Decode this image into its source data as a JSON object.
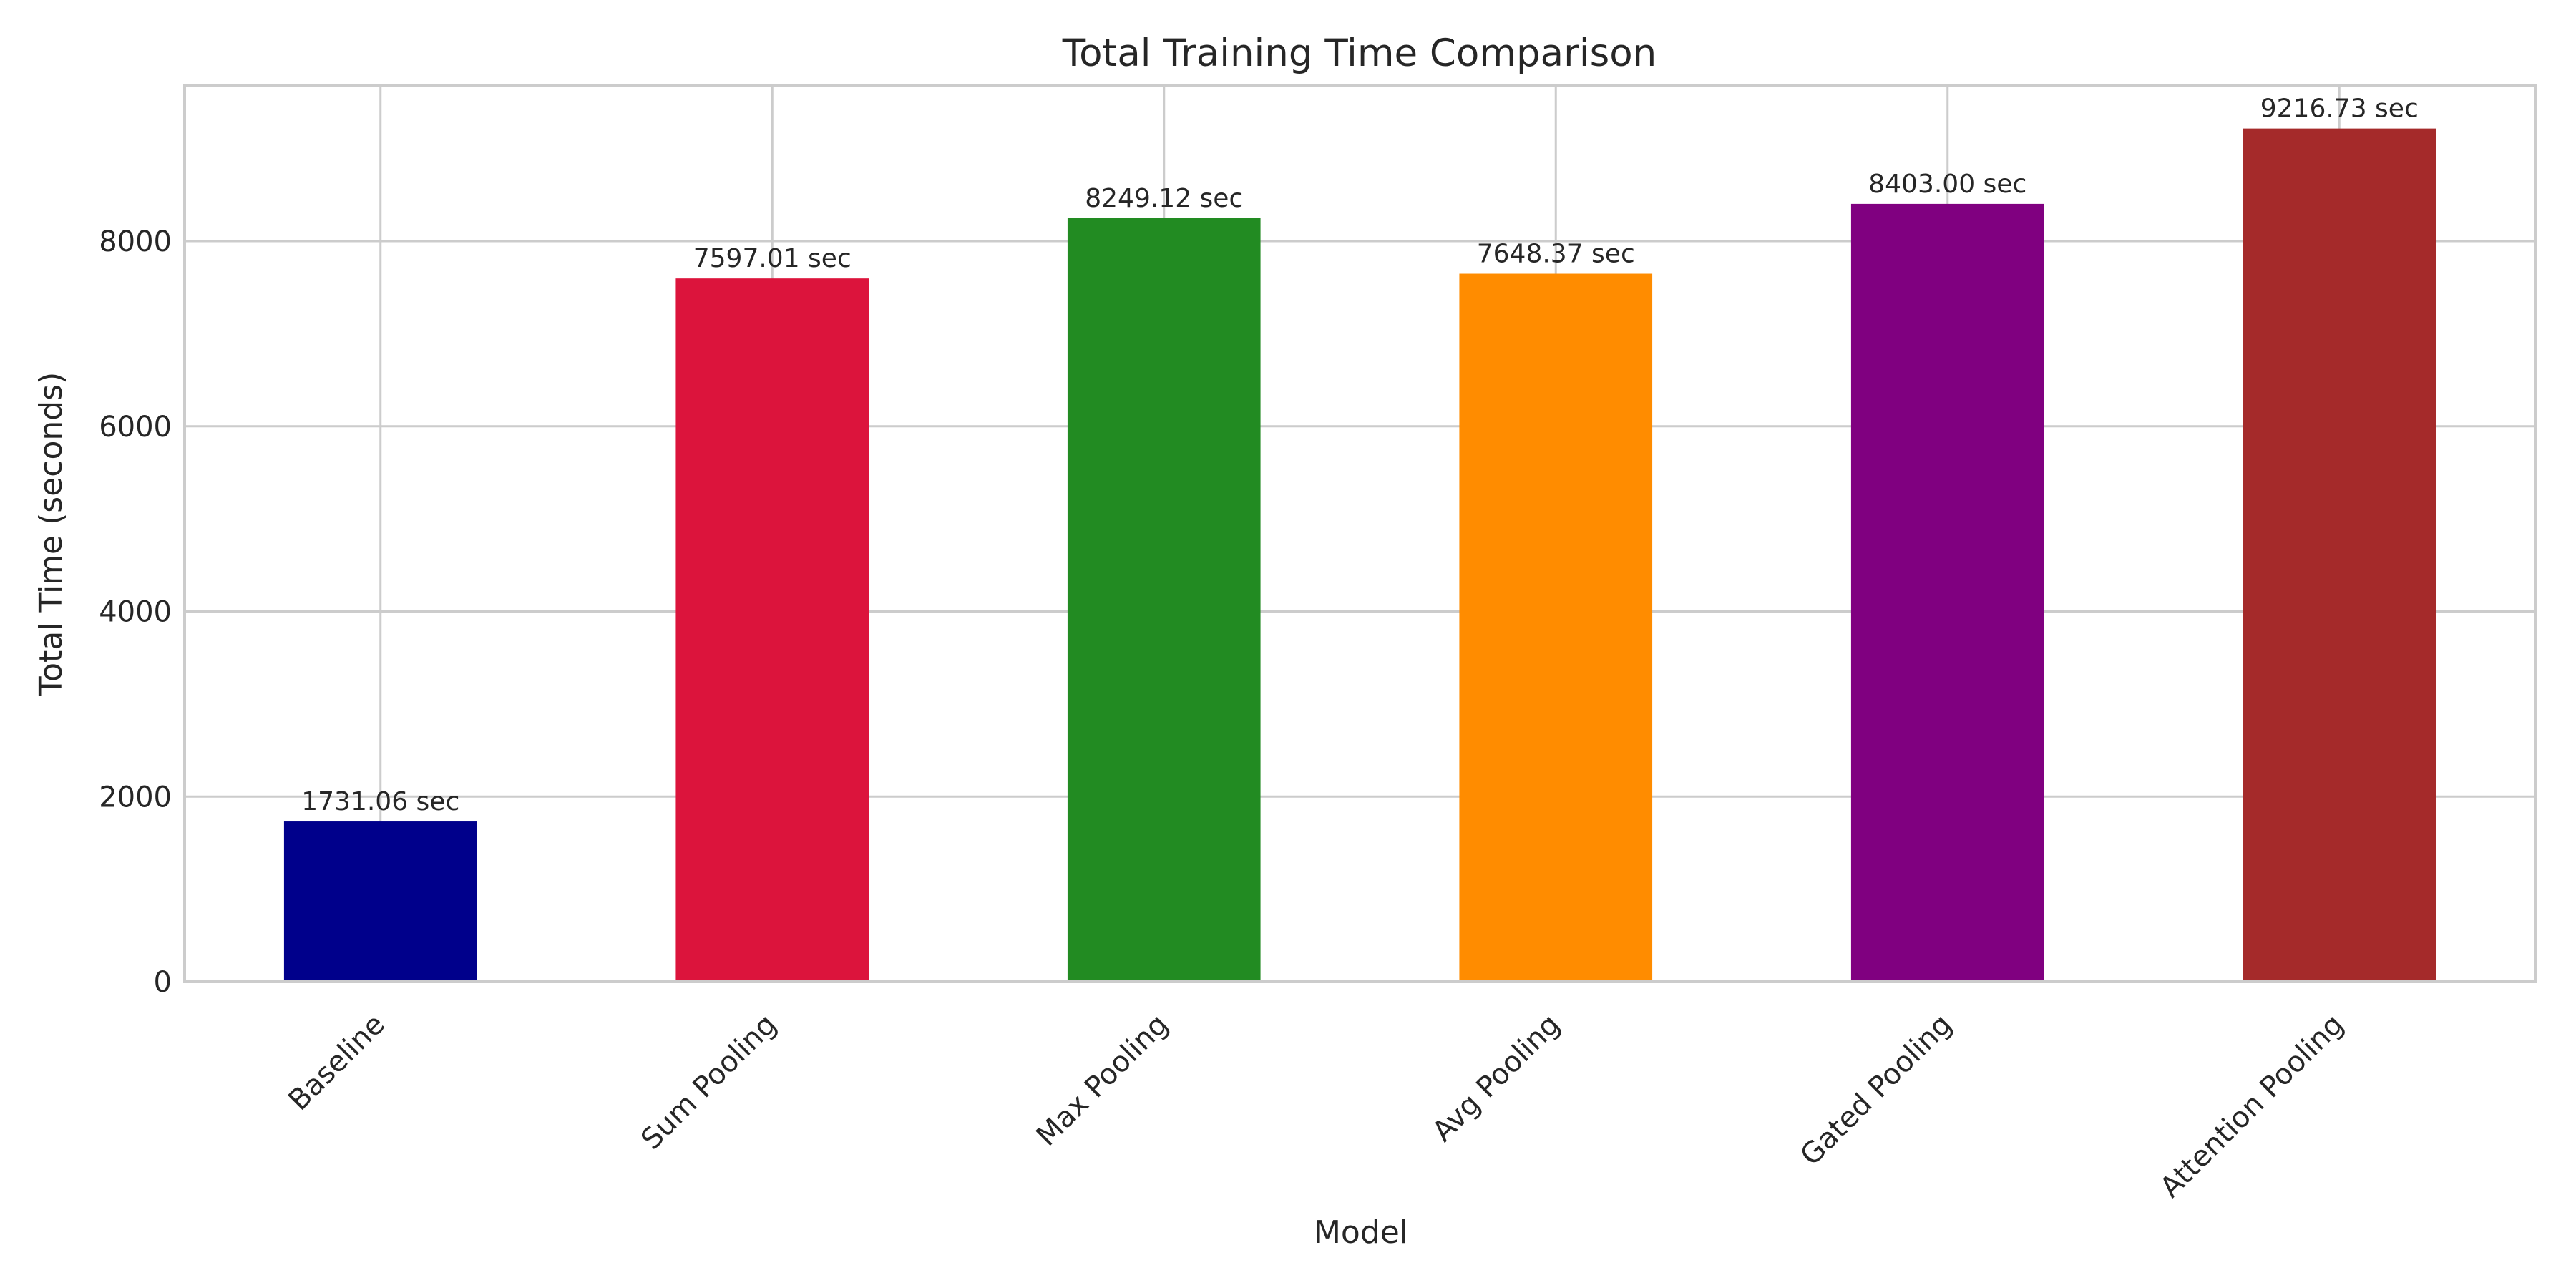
{
  "chart_data": {
    "type": "bar",
    "title": "Total Training Time Comparison",
    "xlabel": "Model",
    "ylabel": "Total Time (seconds)",
    "categories": [
      "Baseline",
      "Sum Pooling",
      "Max Pooling",
      "Avg Pooling",
      "Gated Pooling",
      "Attention Pooling"
    ],
    "values": [
      1731.06,
      7597.01,
      8249.12,
      7648.37,
      8403.0,
      9216.73
    ],
    "data_labels": [
      "1731.06 sec",
      "7597.01 sec",
      "8249.12 sec",
      "7648.37 sec",
      "8403.00 sec",
      "9216.73 sec"
    ],
    "colors": [
      "#00008b",
      "#dc143c",
      "#228b22",
      "#ff8c00",
      "#800080",
      "#a52a2a"
    ],
    "ylim": [
      0,
      9677.6
    ],
    "yticks": [
      0,
      2000,
      4000,
      6000,
      8000
    ],
    "grid": true,
    "legend": "none"
  }
}
